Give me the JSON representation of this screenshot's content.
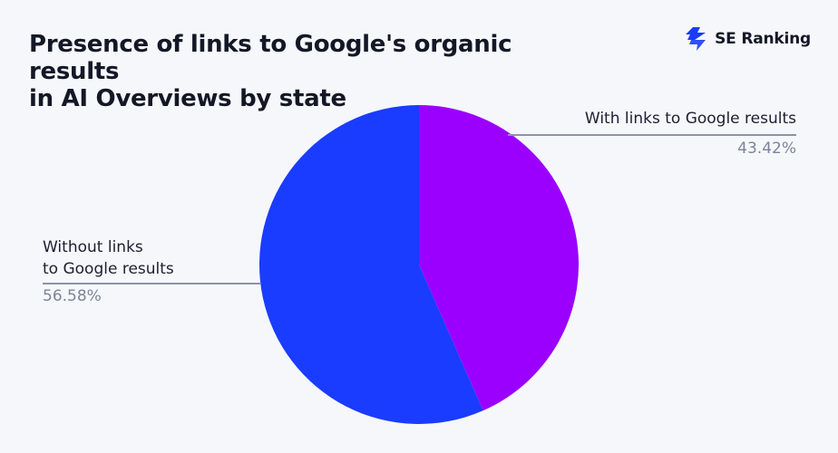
{
  "title": "Presence of links to Google's organic results in AI Overviews by state",
  "title_lines": [
    "Presence of links to Google's organic",
    "results"
  ],
  "brand": {
    "name": "SE Ranking",
    "icon": "se-ranking-logo-icon",
    "color": "#1a3cff"
  },
  "chart_data": {
    "type": "pie",
    "title": "Presence of links to Google's organic results in AI Overviews by state",
    "categories": [
      "With links to Google results",
      "Without links to Google results"
    ],
    "values": [
      43.42,
      56.58
    ],
    "value_labels": [
      "43.42%",
      "56.58%"
    ],
    "colors": [
      "#9b00ff",
      "#1a3cff"
    ],
    "start_angle": "12 o'clock, clockwise",
    "legend": "none (direct labels with leader lines)"
  },
  "labels": {
    "with": {
      "line1": "With links to Google results",
      "pct": "43.42%"
    },
    "without": {
      "line1": "Without links",
      "line2": "to Google results",
      "pct": "56.58%"
    }
  }
}
